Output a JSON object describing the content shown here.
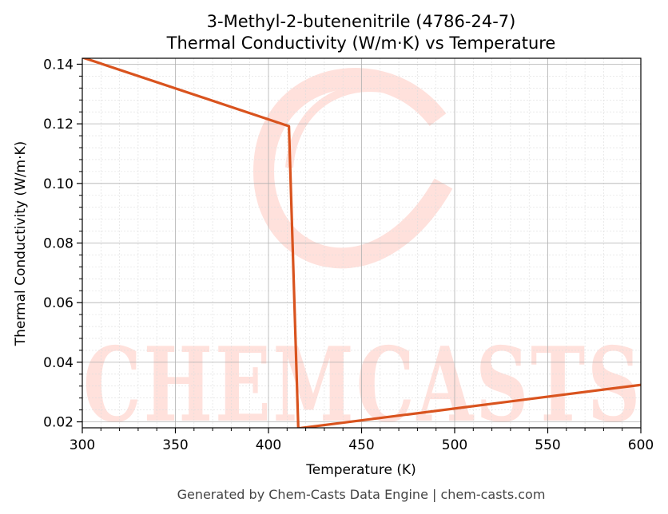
{
  "chart_data": {
    "type": "line",
    "title": "3-Methyl-2-butenenitrile (4786-24-7)",
    "subtitle": "Thermal Conductivity (W/m·K) vs Temperature",
    "xlabel": "Temperature (K)",
    "ylabel": "Thermal Conductivity (W/m·K)",
    "xlim": [
      300,
      600
    ],
    "ylim": [
      0.018,
      0.142
    ],
    "xticks": [
      300,
      350,
      400,
      450,
      500,
      550,
      600
    ],
    "yticks": [
      0.02,
      0.04,
      0.06,
      0.08,
      0.1,
      0.12,
      0.14
    ],
    "ytick_labels": [
      "0.02",
      "0.04",
      "0.06",
      "0.08",
      "0.10",
      "0.12",
      "0.14"
    ],
    "grid": true,
    "minor_grid": true,
    "series": [
      {
        "color": "#d9531e",
        "x": [
          300,
          411,
          416,
          600
        ],
        "y": [
          0.1423,
          0.1192,
          0.0178,
          0.0324
        ]
      }
    ]
  },
  "watermark": {
    "text": "CHEMCASTS",
    "color": "#ffe1dc"
  },
  "footer": "Generated by Chem-Casts Data Engine | chem-casts.com"
}
